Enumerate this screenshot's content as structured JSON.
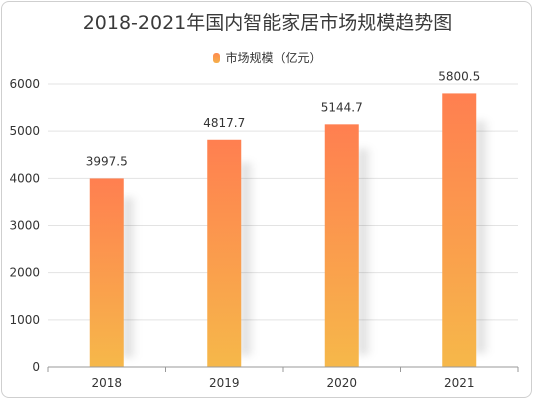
{
  "chart_data": {
    "type": "bar",
    "title": "2018-2021年国内智能家居市场规模趋势图",
    "categories": [
      "2018",
      "2019",
      "2020",
      "2021"
    ],
    "series": [
      {
        "name": "市场规模（亿元）",
        "values": [
          3997.5,
          4817.7,
          5144.7,
          5800.5
        ]
      }
    ],
    "data_labels": [
      "3997.5",
      "4817.7",
      "5144.7",
      "5800.5"
    ],
    "ylim": [
      0,
      6000
    ],
    "yticks": [
      0,
      1000,
      2000,
      3000,
      4000,
      5000,
      6000
    ],
    "grid": true,
    "legend_position": "top-center",
    "colors": {
      "bar_top": "#ff7f50",
      "bar_bottom": "#f6b84a",
      "grid": "#e3e3e3",
      "axis": "#999999"
    }
  }
}
